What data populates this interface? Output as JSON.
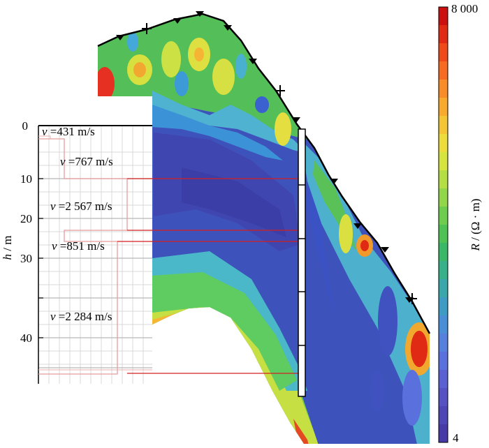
{
  "profile": {
    "y_axis": {
      "label_italic": "h",
      "label_rest": " / m",
      "ticks": [
        "0",
        "10",
        "20",
        "30",
        "40"
      ]
    },
    "velocity_layers": [
      {
        "prefix": "v",
        "value": " =431 m/s"
      },
      {
        "prefix": "v",
        "value": " =767 m/s"
      },
      {
        "prefix": "v",
        "value": " =2 567 m/s"
      },
      {
        "prefix": "v",
        "value": " =851 m/s"
      },
      {
        "prefix": "v",
        "value": " =2 284 m/s"
      }
    ]
  },
  "colorbar": {
    "max_label": "8 000",
    "min_label": "4",
    "title_italic": "R",
    "title_rest": " / (Ω · m)",
    "colors": [
      "#cc1010",
      "#e02a14",
      "#ef4a1a",
      "#f66a22",
      "#f88c28",
      "#f7aa2e",
      "#f4c636",
      "#ecdc3c",
      "#d6e440",
      "#b4de44",
      "#92d64a",
      "#6ecc4e",
      "#4ec254",
      "#3ab868",
      "#38b08a",
      "#3aa8aa",
      "#3e9cc4",
      "#4a8ed6",
      "#5680de",
      "#5a70dc",
      "#5a60d2",
      "#5652c4",
      "#4e46b6",
      "#463aa6"
    ]
  }
}
